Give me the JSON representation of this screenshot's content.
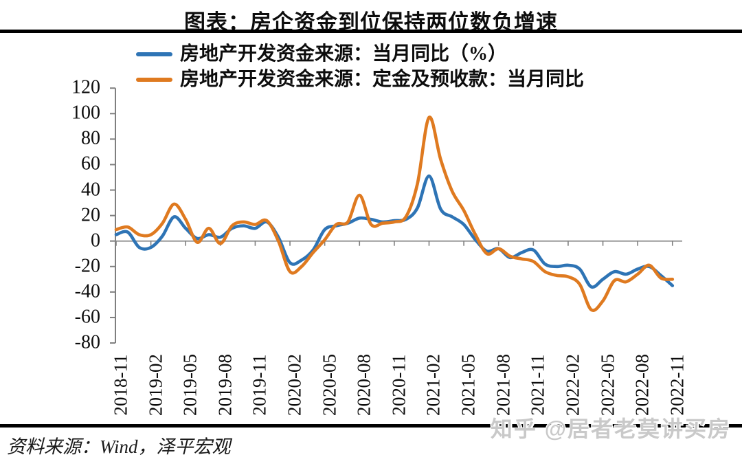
{
  "source_note": "资料来源：Wind，泽平宏观",
  "watermark": "知乎 @居者老莫讲买房",
  "chart_data": {
    "type": "line",
    "title": "图表：房企资金到位保持两位数负增速",
    "xlabel": "",
    "ylabel": "",
    "ylim": [
      -80,
      120
    ],
    "yticks": [
      120,
      100,
      80,
      60,
      40,
      20,
      0,
      -20,
      -40,
      -60,
      -80
    ],
    "grid": false,
    "legend_position": "top-left",
    "x": [
      "2018-11",
      "2018-12",
      "2019-01",
      "2019-02",
      "2019-03",
      "2019-04",
      "2019-05",
      "2019-06",
      "2019-07",
      "2019-08",
      "2019-09",
      "2019-10",
      "2019-11",
      "2019-12",
      "2020-01",
      "2020-02",
      "2020-03",
      "2020-04",
      "2020-05",
      "2020-06",
      "2020-07",
      "2020-08",
      "2020-09",
      "2020-10",
      "2020-11",
      "2020-12",
      "2021-01",
      "2021-02",
      "2021-03",
      "2021-04",
      "2021-05",
      "2021-06",
      "2021-07",
      "2021-08",
      "2021-09",
      "2021-10",
      "2021-11",
      "2021-12",
      "2022-01",
      "2022-02",
      "2022-03",
      "2022-04",
      "2022-05",
      "2022-06",
      "2022-07",
      "2022-08",
      "2022-09",
      "2022-10",
      "2022-11"
    ],
    "x_tick_labels": [
      "2018-11",
      "2019-02",
      "2019-05",
      "2019-08",
      "2019-11",
      "2020-02",
      "2020-05",
      "2020-08",
      "2020-11",
      "2021-02",
      "2021-05",
      "2021-08",
      "2021-11",
      "2022-02",
      "2022-05",
      "2022-08",
      "2022-11"
    ],
    "series": [
      {
        "name": "房地产开发资金来源：当月同比（%）",
        "color": "#2E74B5",
        "values": [
          5,
          7,
          -5,
          -5,
          4,
          19,
          10,
          2,
          5,
          3,
          10,
          12,
          10,
          15,
          3,
          -17,
          -15,
          -7,
          9,
          12,
          14,
          18,
          17,
          15,
          16,
          17,
          26,
          51,
          25,
          19,
          13,
          1,
          -8,
          -6,
          -13,
          -9,
          -7,
          -18,
          -20,
          -19,
          -22,
          -36,
          -30,
          -24,
          -26,
          -22,
          -20,
          -27,
          -35
        ]
      },
      {
        "name": "房地产开发资金来源：定金及预收款：当月同比",
        "color": "#DF7A20",
        "values": [
          9,
          11,
          5,
          5,
          14,
          29,
          17,
          -1,
          10,
          -2,
          12,
          15,
          13,
          16,
          0,
          -24,
          -20,
          -9,
          1,
          13,
          15,
          36,
          13,
          14,
          15,
          19,
          45,
          97,
          64,
          39,
          24,
          5,
          -10,
          -6,
          -12,
          -14,
          -16,
          -24,
          -27,
          -28,
          -34,
          -54,
          -47,
          -31,
          -32,
          -26,
          -19,
          -29,
          -30
        ]
      }
    ]
  }
}
